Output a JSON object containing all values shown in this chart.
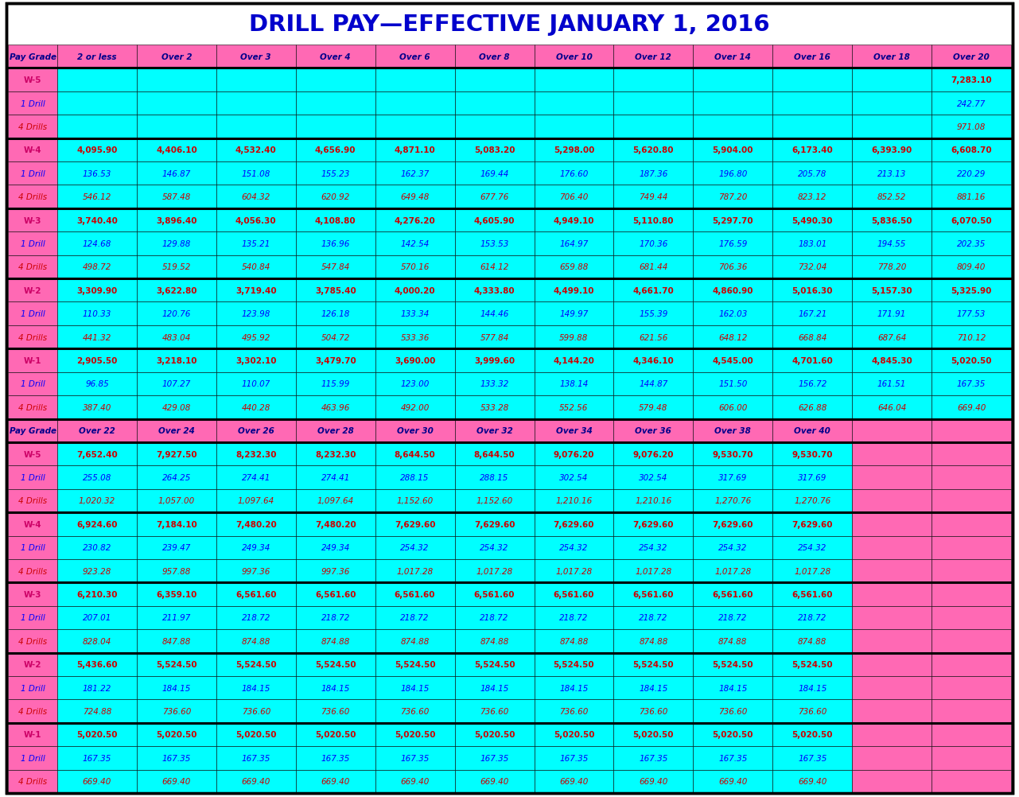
{
  "title": "DRILL PAY—EFFECTIVE JANUARY 1, 2016",
  "title_color": "#0000CC",
  "background_color": "#FFFFFF",
  "cyan": "#00FFFF",
  "pink": "#FF69B4",
  "dark_red": "#CC0000",
  "blue": "#0000FF",
  "dark_blue": "#00008B",
  "black": "#000000",
  "white": "#FFFFFF",
  "header1_cols": [
    "Pay Grade",
    "2 or less",
    "Over 2",
    "Over 3",
    "Over 4",
    "Over 6",
    "Over 8",
    "Over 10",
    "Over 12",
    "Over 14",
    "Over 16",
    "Over 18",
    "Over 20"
  ],
  "header2_cols": [
    "Pay Grade",
    "Over 22",
    "Over 24",
    "Over 26",
    "Over 28",
    "Over 30",
    "Over 32",
    "Over 34",
    "Over 36",
    "Over 38",
    "Over 40"
  ],
  "section1": [
    {
      "grade": "W-5",
      "type": "W",
      "vals": [
        "",
        "",
        "",
        "",
        "",
        "",
        "",
        "",
        "",
        "",
        "",
        "7,283.10"
      ]
    },
    {
      "grade": "1 Drill",
      "type": "1D",
      "vals": [
        "",
        "",
        "",
        "",
        "",
        "",
        "",
        "",
        "",
        "",
        "",
        "242.77"
      ]
    },
    {
      "grade": "4 Drills",
      "type": "4D",
      "vals": [
        "",
        "",
        "",
        "",
        "",
        "",
        "",
        "",
        "",
        "",
        "",
        "971.08"
      ]
    },
    {
      "grade": "W-4",
      "type": "W",
      "vals": [
        "4,095.90",
        "4,406.10",
        "4,532.40",
        "4,656.90",
        "4,871.10",
        "5,083.20",
        "5,298.00",
        "5,620.80",
        "5,904.00",
        "6,173.40",
        "6,393.90",
        "6,608.70"
      ]
    },
    {
      "grade": "1 Drill",
      "type": "1D",
      "vals": [
        "136.53",
        "146.87",
        "151.08",
        "155.23",
        "162.37",
        "169.44",
        "176.60",
        "187.36",
        "196.80",
        "205.78",
        "213.13",
        "220.29"
      ]
    },
    {
      "grade": "4 Drills",
      "type": "4D",
      "vals": [
        "546.12",
        "587.48",
        "604.32",
        "620.92",
        "649.48",
        "677.76",
        "706.40",
        "749.44",
        "787.20",
        "823.12",
        "852.52",
        "881.16"
      ]
    },
    {
      "grade": "W-3",
      "type": "W",
      "vals": [
        "3,740.40",
        "3,896.40",
        "4,056.30",
        "4,108.80",
        "4,276.20",
        "4,605.90",
        "4,949.10",
        "5,110.80",
        "5,297.70",
        "5,490.30",
        "5,836.50",
        "6,070.50"
      ]
    },
    {
      "grade": "1 Drill",
      "type": "1D",
      "vals": [
        "124.68",
        "129.88",
        "135.21",
        "136.96",
        "142.54",
        "153.53",
        "164.97",
        "170.36",
        "176.59",
        "183.01",
        "194.55",
        "202.35"
      ]
    },
    {
      "grade": "4 Drills",
      "type": "4D",
      "vals": [
        "498.72",
        "519.52",
        "540.84",
        "547.84",
        "570.16",
        "614.12",
        "659.88",
        "681.44",
        "706.36",
        "732.04",
        "778.20",
        "809.40"
      ]
    },
    {
      "grade": "W-2",
      "type": "W",
      "vals": [
        "3,309.90",
        "3,622.80",
        "3,719.40",
        "3,785.40",
        "4,000.20",
        "4,333.80",
        "4,499.10",
        "4,661.70",
        "4,860.90",
        "5,016.30",
        "5,157.30",
        "5,325.90"
      ]
    },
    {
      "grade": "1 Drill",
      "type": "1D",
      "vals": [
        "110.33",
        "120.76",
        "123.98",
        "126.18",
        "133.34",
        "144.46",
        "149.97",
        "155.39",
        "162.03",
        "167.21",
        "171.91",
        "177.53"
      ]
    },
    {
      "grade": "4 Drills",
      "type": "4D",
      "vals": [
        "441.32",
        "483.04",
        "495.92",
        "504.72",
        "533.36",
        "577.84",
        "599.88",
        "621.56",
        "648.12",
        "668.84",
        "687.64",
        "710.12"
      ]
    },
    {
      "grade": "W-1",
      "type": "W",
      "vals": [
        "2,905.50",
        "3,218.10",
        "3,302.10",
        "3,479.70",
        "3,690.00",
        "3,999.60",
        "4,144.20",
        "4,346.10",
        "4,545.00",
        "4,701.60",
        "4,845.30",
        "5,020.50"
      ]
    },
    {
      "grade": "1 Drill",
      "type": "1D",
      "vals": [
        "96.85",
        "107.27",
        "110.07",
        "115.99",
        "123.00",
        "133.32",
        "138.14",
        "144.87",
        "151.50",
        "156.72",
        "161.51",
        "167.35"
      ]
    },
    {
      "grade": "4 Drills",
      "type": "4D",
      "vals": [
        "387.40",
        "429.08",
        "440.28",
        "463.96",
        "492.00",
        "533.28",
        "552.56",
        "579.48",
        "606.00",
        "626.88",
        "646.04",
        "669.40"
      ]
    }
  ],
  "section2": [
    {
      "grade": "W-5",
      "type": "W",
      "vals": [
        "7,652.40",
        "7,927.50",
        "8,232.30",
        "8,232.30",
        "8,644.50",
        "8,644.50",
        "9,076.20",
        "9,076.20",
        "9,530.70",
        "9,530.70"
      ]
    },
    {
      "grade": "1 Drill",
      "type": "1D",
      "vals": [
        "255.08",
        "264.25",
        "274.41",
        "274.41",
        "288.15",
        "288.15",
        "302.54",
        "302.54",
        "317.69",
        "317.69"
      ]
    },
    {
      "grade": "4 Drills",
      "type": "4D",
      "vals": [
        "1,020.32",
        "1,057.00",
        "1,097.64",
        "1,097.64",
        "1,152.60",
        "1,152.60",
        "1,210.16",
        "1,210.16",
        "1,270.76",
        "1,270.76"
      ]
    },
    {
      "grade": "W-4",
      "type": "W",
      "vals": [
        "6,924.60",
        "7,184.10",
        "7,480.20",
        "7,480.20",
        "7,629.60",
        "7,629.60",
        "7,629.60",
        "7,629.60",
        "7,629.60",
        "7,629.60"
      ]
    },
    {
      "grade": "1 Drill",
      "type": "1D",
      "vals": [
        "230.82",
        "239.47",
        "249.34",
        "249.34",
        "254.32",
        "254.32",
        "254.32",
        "254.32",
        "254.32",
        "254.32"
      ]
    },
    {
      "grade": "4 Drills",
      "type": "4D",
      "vals": [
        "923.28",
        "957.88",
        "997.36",
        "997.36",
        "1,017.28",
        "1,017.28",
        "1,017.28",
        "1,017.28",
        "1,017.28",
        "1,017.28"
      ]
    },
    {
      "grade": "W-3",
      "type": "W",
      "vals": [
        "6,210.30",
        "6,359.10",
        "6,561.60",
        "6,561.60",
        "6,561.60",
        "6,561.60",
        "6,561.60",
        "6,561.60",
        "6,561.60",
        "6,561.60"
      ]
    },
    {
      "grade": "1 Drill",
      "type": "1D",
      "vals": [
        "207.01",
        "211.97",
        "218.72",
        "218.72",
        "218.72",
        "218.72",
        "218.72",
        "218.72",
        "218.72",
        "218.72"
      ]
    },
    {
      "grade": "4 Drills",
      "type": "4D",
      "vals": [
        "828.04",
        "847.88",
        "874.88",
        "874.88",
        "874.88",
        "874.88",
        "874.88",
        "874.88",
        "874.88",
        "874.88"
      ]
    },
    {
      "grade": "W-2",
      "type": "W",
      "vals": [
        "5,436.60",
        "5,524.50",
        "5,524.50",
        "5,524.50",
        "5,524.50",
        "5,524.50",
        "5,524.50",
        "5,524.50",
        "5,524.50",
        "5,524.50"
      ]
    },
    {
      "grade": "1 Drill",
      "type": "1D",
      "vals": [
        "181.22",
        "184.15",
        "184.15",
        "184.15",
        "184.15",
        "184.15",
        "184.15",
        "184.15",
        "184.15",
        "184.15"
      ]
    },
    {
      "grade": "4 Drills",
      "type": "4D",
      "vals": [
        "724.88",
        "736.60",
        "736.60",
        "736.60",
        "736.60",
        "736.60",
        "736.60",
        "736.60",
        "736.60",
        "736.60"
      ]
    },
    {
      "grade": "W-1",
      "type": "W",
      "vals": [
        "5,020.50",
        "5,020.50",
        "5,020.50",
        "5,020.50",
        "5,020.50",
        "5,020.50",
        "5,020.50",
        "5,020.50",
        "5,020.50",
        "5,020.50"
      ]
    },
    {
      "grade": "1 Drill",
      "type": "1D",
      "vals": [
        "167.35",
        "167.35",
        "167.35",
        "167.35",
        "167.35",
        "167.35",
        "167.35",
        "167.35",
        "167.35",
        "167.35"
      ]
    },
    {
      "grade": "4 Drills",
      "type": "4D",
      "vals": [
        "669.40",
        "669.40",
        "669.40",
        "669.40",
        "669.40",
        "669.40",
        "669.40",
        "669.40",
        "669.40",
        "669.40"
      ]
    }
  ]
}
